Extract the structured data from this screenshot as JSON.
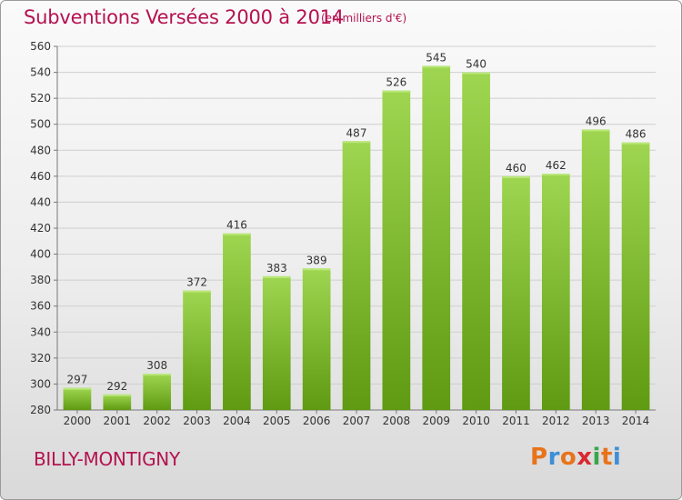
{
  "header": {
    "title": "Subventions Versées 2000 à 2014",
    "subtitle": "(en milliers d'€)"
  },
  "footer": {
    "city": "BILLY-MONTIGNY",
    "logo_text": "Proxiti"
  },
  "colors": {
    "title": "#b5124f",
    "bar_top": "#9fd651",
    "bar_bottom": "#5f9a12",
    "grid": "#cfcfcf",
    "logo_letters": [
      "#e8731a",
      "#3c8fd6",
      "#e8731a",
      "#d9282f",
      "#3aa64a",
      "#e8731a",
      "#3c8fd6"
    ]
  },
  "chart_data": {
    "type": "bar",
    "title": "Subventions Versées 2000 à 2014",
    "subtitle": "(en milliers d'€)",
    "categories": [
      "2000",
      "2001",
      "2002",
      "2003",
      "2004",
      "2005",
      "2006",
      "2007",
      "2008",
      "2009",
      "2010",
      "2011",
      "2012",
      "2013",
      "2014"
    ],
    "values": [
      297,
      292,
      308,
      372,
      416,
      383,
      389,
      487,
      526,
      545,
      540,
      460,
      462,
      496,
      486
    ],
    "ylim": [
      280,
      560
    ],
    "yticks": [
      280,
      300,
      320,
      340,
      360,
      380,
      400,
      420,
      440,
      460,
      480,
      500,
      520,
      540,
      560
    ],
    "grid": true,
    "xlabel": "",
    "ylabel": ""
  }
}
